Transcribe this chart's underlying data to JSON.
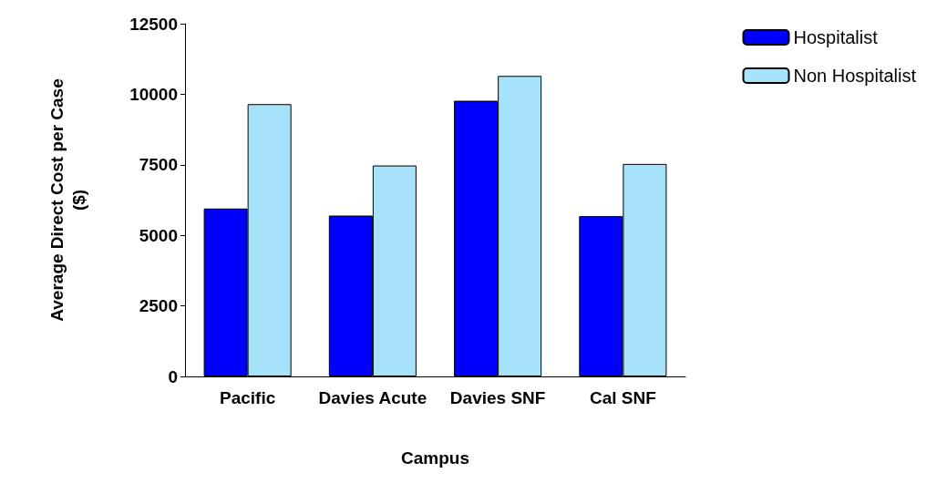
{
  "chart_data": {
    "type": "bar",
    "xlabel": "Campus",
    "ylabel": "Average Direct Cost per Case\n($)",
    "categories": [
      "Pacific",
      "Davies Acute",
      "Davies SNF",
      "Cal SNF"
    ],
    "series": [
      {
        "name": "Hospitalist",
        "color": "#0000ff",
        "values": [
          5950,
          5700,
          9770,
          5680
        ]
      },
      {
        "name": "Non Hospitalist",
        "color": "#a6e3fa",
        "values": [
          9650,
          7475,
          10650,
          7530
        ]
      }
    ],
    "ylim": [
      0,
      12500
    ],
    "yticks": [
      0,
      2500,
      5000,
      7500,
      10000,
      12500
    ],
    "grid": false,
    "legend": "top right"
  }
}
